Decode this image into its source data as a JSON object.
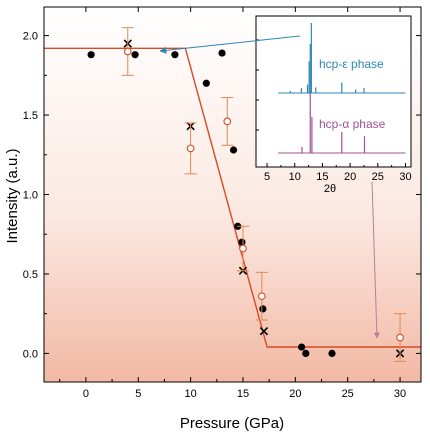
{
  "chart_data": {
    "type": "scatter",
    "xlabel": "Pressure (GPa)",
    "ylabel": "Intensity (a.u.)",
    "xlim": [
      -4,
      32
    ],
    "ylim": [
      -0.18,
      2.18
    ],
    "x_ticks": [
      "0",
      "5",
      "10",
      "15",
      "20",
      "25",
      "30"
    ],
    "y_ticks": [
      "0.0",
      "0.5",
      "1.0",
      "1.5",
      "2.0"
    ],
    "colors": {
      "fit_line": "#d84a22",
      "open_circle": "#d84a22",
      "error_bar": "#e08a50",
      "inset_blue": "#2d86b8",
      "inset_purple": "#a0529a",
      "arrow_blue": "#2d86b8",
      "arrow_pink": "#c07aa0"
    },
    "series": [
      {
        "marker": "filled-circle",
        "points": [
          {
            "x": 0.5,
            "y": 1.88
          },
          {
            "x": 4.7,
            "y": 1.88
          },
          {
            "x": 8.5,
            "y": 1.88
          },
          {
            "x": 11.5,
            "y": 1.7
          },
          {
            "x": 13.0,
            "y": 1.89
          },
          {
            "x": 14.1,
            "y": 1.28
          },
          {
            "x": 14.5,
            "y": 0.8
          },
          {
            "x": 14.9,
            "y": 0.7
          },
          {
            "x": 16.9,
            "y": 0.28
          },
          {
            "x": 20.6,
            "y": 0.04
          },
          {
            "x": 21.0,
            "y": 0.0
          },
          {
            "x": 23.5,
            "y": 0.0
          }
        ]
      },
      {
        "marker": "cross",
        "points": [
          {
            "x": 4.0,
            "y": 1.95
          },
          {
            "x": 10.0,
            "y": 1.43
          },
          {
            "x": 15.0,
            "y": 0.52
          },
          {
            "x": 17.0,
            "y": 0.14
          },
          {
            "x": 30.0,
            "y": 0.0
          }
        ]
      },
      {
        "marker": "open-circle",
        "points": [
          {
            "x": 4.0,
            "y": 1.9,
            "err": 0.15
          },
          {
            "x": 10.0,
            "y": 1.29,
            "err": 0.16
          },
          {
            "x": 13.5,
            "y": 1.46,
            "err": 0.15
          },
          {
            "x": 15.0,
            "y": 0.66,
            "err": 0.14
          },
          {
            "x": 16.8,
            "y": 0.36,
            "err": 0.15
          },
          {
            "x": 30.0,
            "y": 0.1,
            "err": 0.15
          }
        ]
      }
    ],
    "fit_line": [
      {
        "x": -4.0,
        "y": 1.92
      },
      {
        "x": 9.5,
        "y": 1.92
      },
      {
        "x": 17.3,
        "y": 0.04
      },
      {
        "x": 32.0,
        "y": 0.04
      }
    ],
    "inset": {
      "xlabel": "2θ",
      "xlim": [
        3,
        31
      ],
      "x_ticks": [
        "5",
        "10",
        "15",
        "20",
        "25",
        "30"
      ],
      "label_epsilon": "hcp-ε phase",
      "label_alpha": "hcp-α phase",
      "epsilon_peaks": [
        {
          "x": 9.2,
          "h": 0.03
        },
        {
          "x": 11.2,
          "h": 0.07
        },
        {
          "x": 12.3,
          "h": 0.12
        },
        {
          "x": 12.6,
          "h": 0.45
        },
        {
          "x": 12.8,
          "h": 0.7
        },
        {
          "x": 13.0,
          "h": 1.0
        },
        {
          "x": 13.8,
          "h": 0.08
        },
        {
          "x": 18.5,
          "h": 0.15
        },
        {
          "x": 21.0,
          "h": 0.05
        },
        {
          "x": 22.5,
          "h": 0.07
        }
      ],
      "alpha_peaks": [
        {
          "x": 11.3,
          "h": 0.1
        },
        {
          "x": 12.8,
          "h": 1.0
        },
        {
          "x": 13.1,
          "h": 0.6
        },
        {
          "x": 18.5,
          "h": 0.35
        },
        {
          "x": 22.6,
          "h": 0.28
        }
      ]
    }
  }
}
